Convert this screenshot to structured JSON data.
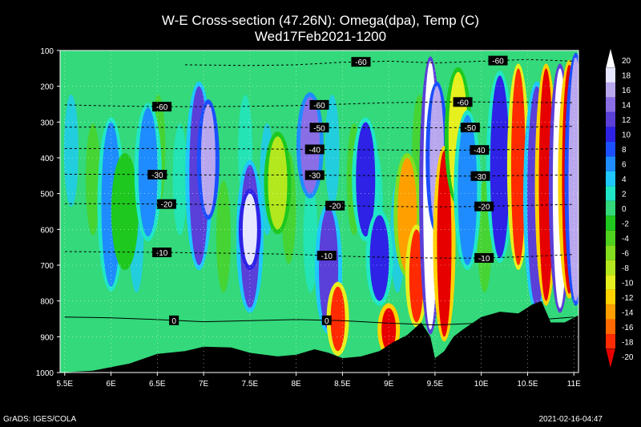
{
  "chart_data": {
    "type": "heatmap",
    "title": "W-E Cross-section (47.26N): Omega(dpa), Temp (C)",
    "subtitle": "Wed17Feb2021-1200",
    "x_tick_labels": [
      "5.5E",
      "6E",
      "6.5E",
      "7E",
      "7.5E",
      "8E",
      "8.5E",
      "9E",
      "9.5E",
      "10E",
      "10.5E",
      "11E"
    ],
    "x_ticks": [
      5.5,
      6,
      6.5,
      7,
      7.5,
      8,
      8.5,
      9,
      9.5,
      10,
      10.5,
      11
    ],
    "xlim": [
      5.45,
      11.05
    ],
    "y_tick_labels": [
      "100",
      "200",
      "300",
      "400",
      "500",
      "600",
      "700",
      "800",
      "900",
      "1000"
    ],
    "y_ticks": [
      100,
      200,
      300,
      400,
      500,
      600,
      700,
      800,
      900,
      1000
    ],
    "ylim": [
      1000,
      100
    ],
    "colorbar": {
      "levels": [
        "20",
        "18",
        "16",
        "14",
        "12",
        "10",
        "8",
        "6",
        "4",
        "2",
        "0",
        "-2",
        "-4",
        "-6",
        "-8",
        "-10",
        "-12",
        "-14",
        "-16",
        "-18",
        "-20"
      ],
      "colors": [
        "#ffffff",
        "#e6e6ff",
        "#b9a7ee",
        "#8a6ee6",
        "#5a3fd8",
        "#2d22e6",
        "#1b4fff",
        "#1e8cff",
        "#1ec8ff",
        "#20e6c8",
        "#33d97a",
        "#1ec81e",
        "#4ed21e",
        "#82de1e",
        "#b4e81e",
        "#e6f01e",
        "#ffd200",
        "#ffa000",
        "#ff6a00",
        "#ff2a00",
        "#e60000"
      ]
    },
    "temperature_contours": [
      {
        "label": "-60",
        "points": [
          [
            5.5,
            252
          ],
          [
            6.0,
            255
          ],
          [
            6.5,
            257
          ],
          [
            7.0,
            257
          ],
          [
            7.5,
            256
          ],
          [
            8.0,
            254
          ],
          [
            8.5,
            250
          ],
          [
            9.0,
            246
          ],
          [
            9.5,
            244
          ],
          [
            10.0,
            244
          ],
          [
            10.5,
            245
          ],
          [
            11.0,
            246
          ]
        ],
        "labels_at": [
          [
            6.55,
            -60
          ],
          [
            8.25,
            -60
          ],
          [
            9.8,
            -60
          ]
        ]
      },
      {
        "label": "-60",
        "points": [
          [
            6.8,
            140
          ],
          [
            7.5,
            142
          ],
          [
            8.0,
            140
          ],
          [
            8.5,
            133
          ],
          [
            9.0,
            130
          ],
          [
            9.5,
            135
          ],
          [
            10.0,
            130
          ],
          [
            10.5,
            125
          ],
          [
            11.0,
            130
          ]
        ],
        "labels_at": [
          [
            8.7,
            -60
          ],
          [
            10.18,
            -60
          ]
        ]
      },
      {
        "label": "-50",
        "points": [
          [
            5.5,
            314
          ],
          [
            6.0,
            314
          ],
          [
            6.5,
            315
          ],
          [
            7.0,
            315
          ],
          [
            7.5,
            314
          ],
          [
            8.0,
            315
          ],
          [
            8.5,
            316
          ],
          [
            9.0,
            316
          ],
          [
            9.5,
            316
          ],
          [
            10.0,
            315
          ],
          [
            10.5,
            314
          ],
          [
            11.0,
            312
          ]
        ],
        "labels_at": [
          [
            8.25,
            -50
          ],
          [
            9.88,
            -50
          ]
        ]
      },
      {
        "label": "-40",
        "points": [
          [
            5.5,
            374
          ],
          [
            6.0,
            374
          ],
          [
            6.5,
            374
          ],
          [
            7.0,
            375
          ],
          [
            7.5,
            375
          ],
          [
            8.0,
            376
          ],
          [
            8.5,
            377
          ],
          [
            9.0,
            378
          ],
          [
            9.5,
            379
          ],
          [
            10.0,
            378
          ],
          [
            10.5,
            376
          ],
          [
            11.0,
            374
          ]
        ],
        "labels_at": [
          [
            8.2,
            -40
          ],
          [
            9.98,
            -40
          ]
        ]
      },
      {
        "label": "-30",
        "points": [
          [
            5.5,
            446
          ],
          [
            6.0,
            446
          ],
          [
            6.5,
            447
          ],
          [
            7.0,
            448
          ],
          [
            7.5,
            448
          ],
          [
            8.0,
            448
          ],
          [
            8.5,
            449
          ],
          [
            9.0,
            450
          ],
          [
            9.5,
            451
          ],
          [
            10.0,
            451
          ],
          [
            10.5,
            449
          ],
          [
            11.0,
            448
          ]
        ],
        "labels_at": [
          [
            6.5,
            -30
          ],
          [
            8.2,
            -30
          ],
          [
            9.99,
            -30
          ]
        ]
      },
      {
        "label": "-20",
        "points": [
          [
            5.5,
            528
          ],
          [
            6.0,
            528
          ],
          [
            6.5,
            529
          ],
          [
            7.0,
            530
          ],
          [
            7.5,
            531
          ],
          [
            8.0,
            532
          ],
          [
            8.5,
            534
          ],
          [
            9.0,
            536
          ],
          [
            9.5,
            537
          ],
          [
            10.0,
            536
          ],
          [
            10.5,
            533
          ],
          [
            11.0,
            530
          ]
        ],
        "labels_at": [
          [
            6.6,
            -20
          ],
          [
            8.42,
            -20
          ],
          [
            10.03,
            -20
          ]
        ]
      },
      {
        "label": "-10",
        "points": [
          [
            5.5,
            662
          ],
          [
            6.0,
            663
          ],
          [
            6.5,
            664
          ],
          [
            7.0,
            666
          ],
          [
            7.5,
            667
          ],
          [
            8.0,
            670
          ],
          [
            8.5,
            675
          ],
          [
            9.0,
            678
          ],
          [
            9.5,
            680
          ],
          [
            10.0,
            680
          ],
          [
            10.5,
            676
          ],
          [
            11.0,
            670
          ]
        ],
        "labels_at": [
          [
            6.55,
            -10
          ],
          [
            8.33,
            -10
          ],
          [
            10.03,
            -10
          ]
        ]
      },
      {
        "label": "0",
        "points": [
          [
            5.5,
            845
          ],
          [
            6.0,
            847
          ],
          [
            6.5,
            852
          ],
          [
            7.0,
            858
          ],
          [
            7.5,
            855
          ],
          [
            8.0,
            852
          ],
          [
            8.5,
            855
          ],
          [
            9.0,
            862
          ],
          [
            9.5,
            867
          ],
          [
            10.0,
            862
          ],
          [
            10.5,
            855
          ],
          [
            11.0,
            845
          ]
        ],
        "labels_at": [
          [
            6.68,
            0
          ],
          [
            8.33,
            0
          ]
        ]
      }
    ],
    "omega_features": [
      {
        "lon": 6.0,
        "p_top": 300,
        "p_bot": 760,
        "value": 6
      },
      {
        "lon": 6.15,
        "p_top": 400,
        "p_bot": 700,
        "value": -2
      },
      {
        "lon": 6.4,
        "p_top": 260,
        "p_bot": 620,
        "value": 6
      },
      {
        "lon": 6.95,
        "p_top": 200,
        "p_bot": 700,
        "value": 12
      },
      {
        "lon": 7.05,
        "p_top": 250,
        "p_bot": 560,
        "value": 16
      },
      {
        "lon": 7.5,
        "p_top": 420,
        "p_bot": 820,
        "value": 12
      },
      {
        "lon": 7.5,
        "p_top": 500,
        "p_bot": 700,
        "value": 18
      },
      {
        "lon": 7.8,
        "p_top": 340,
        "p_bot": 600,
        "value": -8
      },
      {
        "lon": 8.15,
        "p_top": 230,
        "p_bot": 500,
        "value": 14
      },
      {
        "lon": 8.35,
        "p_top": 540,
        "p_bot": 880,
        "value": 12
      },
      {
        "lon": 8.45,
        "p_top": 760,
        "p_bot": 940,
        "value": -18
      },
      {
        "lon": 8.75,
        "p_top": 300,
        "p_bot": 620,
        "value": 10
      },
      {
        "lon": 8.9,
        "p_top": 560,
        "p_bot": 800,
        "value": 10
      },
      {
        "lon": 9.0,
        "p_top": 820,
        "p_bot": 940,
        "value": -20
      },
      {
        "lon": 9.2,
        "p_top": 400,
        "p_bot": 720,
        "value": -14
      },
      {
        "lon": 9.3,
        "p_top": 600,
        "p_bot": 860,
        "value": -18
      },
      {
        "lon": 9.45,
        "p_top": 130,
        "p_bot": 880,
        "value": 20
      },
      {
        "lon": 9.52,
        "p_top": 200,
        "p_bot": 600,
        "value": 16
      },
      {
        "lon": 9.6,
        "p_top": 380,
        "p_bot": 900,
        "value": -20
      },
      {
        "lon": 9.75,
        "p_top": 160,
        "p_bot": 520,
        "value": -10
      },
      {
        "lon": 9.85,
        "p_top": 280,
        "p_bot": 700,
        "value": 6
      },
      {
        "lon": 10.2,
        "p_top": 170,
        "p_bot": 680,
        "value": 10
      },
      {
        "lon": 10.4,
        "p_top": 150,
        "p_bot": 700,
        "value": -18
      },
      {
        "lon": 10.6,
        "p_top": 200,
        "p_bot": 820,
        "value": 12
      },
      {
        "lon": 10.7,
        "p_top": 150,
        "p_bot": 800,
        "value": -20
      },
      {
        "lon": 10.85,
        "p_top": 150,
        "p_bot": 820,
        "value": 20
      },
      {
        "lon": 10.95,
        "p_top": 140,
        "p_bot": 780,
        "value": -20
      },
      {
        "lon": 11.02,
        "p_top": 120,
        "p_bot": 800,
        "value": 16
      }
    ],
    "terrain_surface_pressure": [
      [
        5.45,
        1000
      ],
      [
        5.8,
        995
      ],
      [
        6.2,
        975
      ],
      [
        6.5,
        948
      ],
      [
        6.8,
        940
      ],
      [
        7.0,
        928
      ],
      [
        7.3,
        930
      ],
      [
        7.5,
        945
      ],
      [
        7.8,
        955
      ],
      [
        8.0,
        950
      ],
      [
        8.2,
        935
      ],
      [
        8.35,
        945
      ],
      [
        8.5,
        960
      ],
      [
        8.7,
        955
      ],
      [
        8.9,
        940
      ],
      [
        9.05,
        915
      ],
      [
        9.2,
        895
      ],
      [
        9.35,
        860
      ],
      [
        9.45,
        900
      ],
      [
        9.5,
        960
      ],
      [
        9.6,
        940
      ],
      [
        9.7,
        900
      ],
      [
        9.8,
        880
      ],
      [
        10.0,
        845
      ],
      [
        10.2,
        830
      ],
      [
        10.4,
        835
      ],
      [
        10.55,
        810
      ],
      [
        10.65,
        800
      ],
      [
        10.75,
        860
      ],
      [
        10.9,
        860
      ],
      [
        11.05,
        840
      ]
    ]
  },
  "footer": {
    "left": "GrADS: IGES/COLA",
    "right": "2021-02-16-04:47"
  }
}
